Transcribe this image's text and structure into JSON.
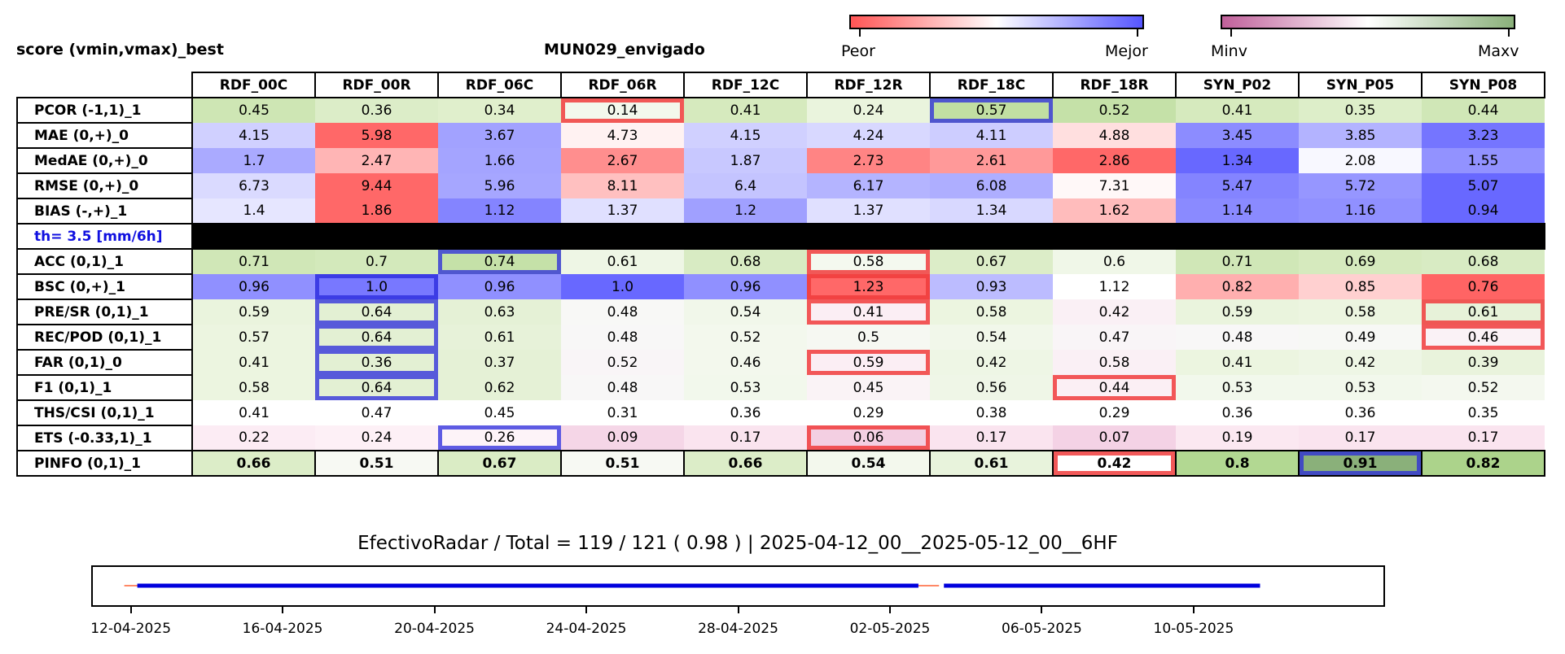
{
  "title_left": "score (vmin,vmax)_best",
  "title_center": "MUN029_envigado",
  "colorbars": [
    {
      "left_label": "Peor",
      "right_label": "Mejor",
      "gradient": [
        "#ff5555",
        "#ffffff",
        "#5555ff"
      ]
    },
    {
      "left_label": "Minv",
      "right_label": "Maxv",
      "gradient": [
        "#c0609a",
        "#ffffff",
        "#8ab07a"
      ]
    }
  ],
  "colors": {
    "red_highlight": "#f03c3c",
    "blue_highlight": "#2828dc",
    "separator_label": "#1010e0",
    "timeline_line": "#0000dd",
    "timeline_gap": "#ff8866"
  },
  "columns": [
    "RDF_00C",
    "RDF_00R",
    "RDF_06C",
    "RDF_06R",
    "RDF_12C",
    "RDF_12R",
    "RDF_18C",
    "RDF_18R",
    "SYN_P02",
    "SYN_P05",
    "SYN_P08"
  ],
  "rows": [
    {
      "label": "PCOR (-1,1)_1",
      "values": [
        "0.45",
        "0.36",
        "0.34",
        "0.14",
        "0.41",
        "0.24",
        "0.57",
        "0.52",
        "0.41",
        "0.35",
        "0.44"
      ],
      "colors": [
        "#cee6b4",
        "#dcedc8",
        "#e0efcc",
        "#f3f8ec",
        "#d6eabe",
        "#eaf4dd",
        "#c1dfa2",
        "#c5e1a8",
        "#d6eabe",
        "#ddeec9",
        "#d0e7b7"
      ],
      "red": [
        3
      ],
      "blue": [
        6
      ]
    },
    {
      "label": "MAE (0,+)_0",
      "values": [
        "4.15",
        "5.98",
        "3.67",
        "4.73",
        "4.15",
        "4.24",
        "4.11",
        "4.88",
        "3.45",
        "3.85",
        "3.23"
      ],
      "colors": [
        "#d0d0ff",
        "#ff6868",
        "#a2a2ff",
        "#fff2f2",
        "#d0d0ff",
        "#d8d8ff",
        "#cdcdff",
        "#ffdfdf",
        "#8c8cff",
        "#b3b3ff",
        "#7575ff"
      ],
      "red": [],
      "blue": []
    },
    {
      "label": "MedAE (0,+)_0",
      "values": [
        "1.7",
        "2.47",
        "1.66",
        "2.67",
        "1.87",
        "2.73",
        "2.61",
        "2.86",
        "1.34",
        "2.08",
        "1.55"
      ],
      "colors": [
        "#aaaaff",
        "#ffb5b5",
        "#a4a4ff",
        "#ff8e8e",
        "#c8c8ff",
        "#ff8484",
        "#ff9999",
        "#ff6868",
        "#6868ff",
        "#f8f8ff",
        "#9292ff"
      ],
      "red": [],
      "blue": []
    },
    {
      "label": "RMSE (0,+)_0",
      "values": [
        "6.73",
        "9.44",
        "5.96",
        "8.11",
        "6.4",
        "6.17",
        "6.08",
        "7.31",
        "5.47",
        "5.72",
        "5.07"
      ],
      "colors": [
        "#dadaff",
        "#ff6868",
        "#a6a6ff",
        "#ffc0c0",
        "#c4c4ff",
        "#b4b4ff",
        "#aeaeff",
        "#fff8f8",
        "#8484ff",
        "#9696ff",
        "#6868ff"
      ],
      "red": [],
      "blue": []
    },
    {
      "label": "BIAS (-,+)_1",
      "values": [
        "1.4",
        "1.86",
        "1.12",
        "1.37",
        "1.2",
        "1.37",
        "1.34",
        "1.62",
        "1.14",
        "1.16",
        "0.94"
      ],
      "colors": [
        "#e6e6ff",
        "#ff6868",
        "#8484ff",
        "#e0e0ff",
        "#a0a0ff",
        "#e0e0ff",
        "#d8d8ff",
        "#ffbcbc",
        "#8a8aff",
        "#9090ff",
        "#6868ff"
      ],
      "red": [],
      "blue": []
    },
    {
      "separator": true,
      "label": "th= 3.5 [mm/6h]"
    },
    {
      "label": "ACC (0,1)_1",
      "values": [
        "0.71",
        "0.7",
        "0.74",
        "0.61",
        "0.68",
        "0.58",
        "0.67",
        "0.6",
        "0.71",
        "0.69",
        "0.68"
      ],
      "colors": [
        "#d0e7b7",
        "#d3e9bb",
        "#c5e1a8",
        "#eef6e5",
        "#d8ebc3",
        "#f4f9ef",
        "#dcedc8",
        "#f0f7e8",
        "#d0e7b7",
        "#d6eabe",
        "#d8ebc3"
      ],
      "red": [
        5
      ],
      "blue": [
        2
      ]
    },
    {
      "label": "BSC (0,+)_1",
      "values": [
        "0.96",
        "1.0",
        "0.96",
        "1.0",
        "0.96",
        "1.23",
        "0.93",
        "1.12",
        "0.82",
        "0.85",
        "0.76"
      ],
      "colors": [
        "#9090ff",
        "#7878ff",
        "#9090ff",
        "#6868ff",
        "#9090ff",
        "#ff6868",
        "#bcbcff",
        "#ffffff",
        "#ffafaf",
        "#ffd0d0",
        "#ff6464"
      ],
      "red": [
        5
      ],
      "blue": [
        1
      ]
    },
    {
      "label": "PRE/SR (0,1)_1",
      "values": [
        "0.59",
        "0.64",
        "0.63",
        "0.48",
        "0.54",
        "0.41",
        "0.58",
        "0.42",
        "0.59",
        "0.58",
        "0.61"
      ],
      "colors": [
        "#eaf4dd",
        "#e3f0d3",
        "#e5f1d6",
        "#f8f8f6",
        "#f1f7ea",
        "#fbeef4",
        "#ecf5e0",
        "#faf0f5",
        "#eaf4dd",
        "#ecf5e0",
        "#e7f2d9"
      ],
      "red": [
        5,
        10
      ],
      "blue": [
        1
      ]
    },
    {
      "label": "REC/POD (0,1)_1",
      "values": [
        "0.57",
        "0.64",
        "0.61",
        "0.48",
        "0.52",
        "0.5",
        "0.54",
        "0.47",
        "0.48",
        "0.49",
        "0.46"
      ],
      "colors": [
        "#ecf5e0",
        "#e3f0d3",
        "#e7f2d9",
        "#f8f7f7",
        "#f3f8ed",
        "#f6f8f2",
        "#f1f7ea",
        "#f9f5f7",
        "#f8f7f7",
        "#f7f8f5",
        "#faf2f6"
      ],
      "red": [
        10
      ],
      "blue": [
        1
      ]
    },
    {
      "label": "FAR (0,1)_0",
      "values": [
        "0.41",
        "0.36",
        "0.37",
        "0.52",
        "0.46",
        "0.59",
        "0.42",
        "0.58",
        "0.41",
        "0.42",
        "0.39"
      ],
      "colors": [
        "#ecf5e0",
        "#e3f0d3",
        "#e5f1d6",
        "#f9f5f7",
        "#f3f8ed",
        "#fbeef4",
        "#eef6e5",
        "#faf0f5",
        "#ecf5e0",
        "#eef6e5",
        "#e9f3dc"
      ],
      "red": [
        5
      ],
      "blue": [
        1
      ]
    },
    {
      "label": "F1 (0,1)_1",
      "values": [
        "0.58",
        "0.64",
        "0.62",
        "0.48",
        "0.53",
        "0.45",
        "0.56",
        "0.44",
        "0.53",
        "0.53",
        "0.52"
      ],
      "colors": [
        "#ecf5e0",
        "#e3f0d3",
        "#e5f1d6",
        "#f8f7f7",
        "#f2f8ec",
        "#faf3f6",
        "#eff6e7",
        "#fbeff4",
        "#f2f8ec",
        "#f2f8ec",
        "#f4f8ef"
      ],
      "red": [
        7
      ],
      "blue": [
        1
      ]
    },
    {
      "label": "THS/CSI (0,1)_1",
      "values": [
        "0.41",
        "0.47",
        "0.45",
        "0.31",
        "0.36",
        "0.29",
        "0.38",
        "0.29",
        "0.36",
        "0.36",
        "0.35"
      ],
      "colors": [
        "#ffffff",
        "#ffffff",
        "#ffffff",
        "#ffffff",
        "#ffffff",
        "#ffffff",
        "#ffffff",
        "#ffffff",
        "#ffffff",
        "#ffffff",
        "#ffffff"
      ],
      "red": [],
      "blue": []
    },
    {
      "label": "ETS (-0.33,1)_1",
      "values": [
        "0.22",
        "0.24",
        "0.26",
        "0.09",
        "0.17",
        "0.06",
        "0.17",
        "0.07",
        "0.19",
        "0.17",
        "0.17"
      ],
      "colors": [
        "#fcecf4",
        "#fdf0f6",
        "#fdf3f8",
        "#f5d6e7",
        "#fae4ef",
        "#f3cfe2",
        "#fae4ef",
        "#f4d2e5",
        "#fbe8f1",
        "#fae4ef",
        "#fae4ef"
      ],
      "red": [
        5
      ],
      "blue": [
        2
      ]
    },
    {
      "label": "PINFO (0,1)_1",
      "bold": true,
      "values": [
        "0.66",
        "0.51",
        "0.67",
        "0.51",
        "0.66",
        "0.54",
        "0.61",
        "0.42",
        "0.8",
        "0.91",
        "0.82"
      ],
      "colors": [
        "#dcedc8",
        "#f7f9f3",
        "#daecc5",
        "#f7f9f3",
        "#dcedc8",
        "#f3f8ed",
        "#e8f3dc",
        "#ffffff",
        "#b2d892",
        "#8ab07a",
        "#acd38b"
      ],
      "red": [
        7
      ],
      "blue": [
        9
      ]
    }
  ],
  "summary": "EfectivoRadar / Total  =  119 / 121 ( 0.98 ) | 2025-04-12_00__2025-05-12_00__6HF",
  "timeline": {
    "xlim": [
      "2025-04-11",
      "2025-05-15"
    ],
    "ticks": [
      "12-04-2025",
      "16-04-2025",
      "20-04-2025",
      "24-04-2025",
      "28-04-2025",
      "02-05-2025",
      "06-05-2025",
      "10-05-2025"
    ],
    "segments": [
      {
        "start": "2025-04-12",
        "end": "2025-05-02T18:00"
      },
      {
        "start": "2025-05-03T06:00",
        "end": "2025-05-11T18:00"
      }
    ],
    "gaps": [
      {
        "start": "2025-04-12T00:00",
        "end": "2025-04-12T04:00"
      },
      {
        "start": "2025-05-02T18:00",
        "end": "2025-05-03T06:00"
      }
    ]
  }
}
